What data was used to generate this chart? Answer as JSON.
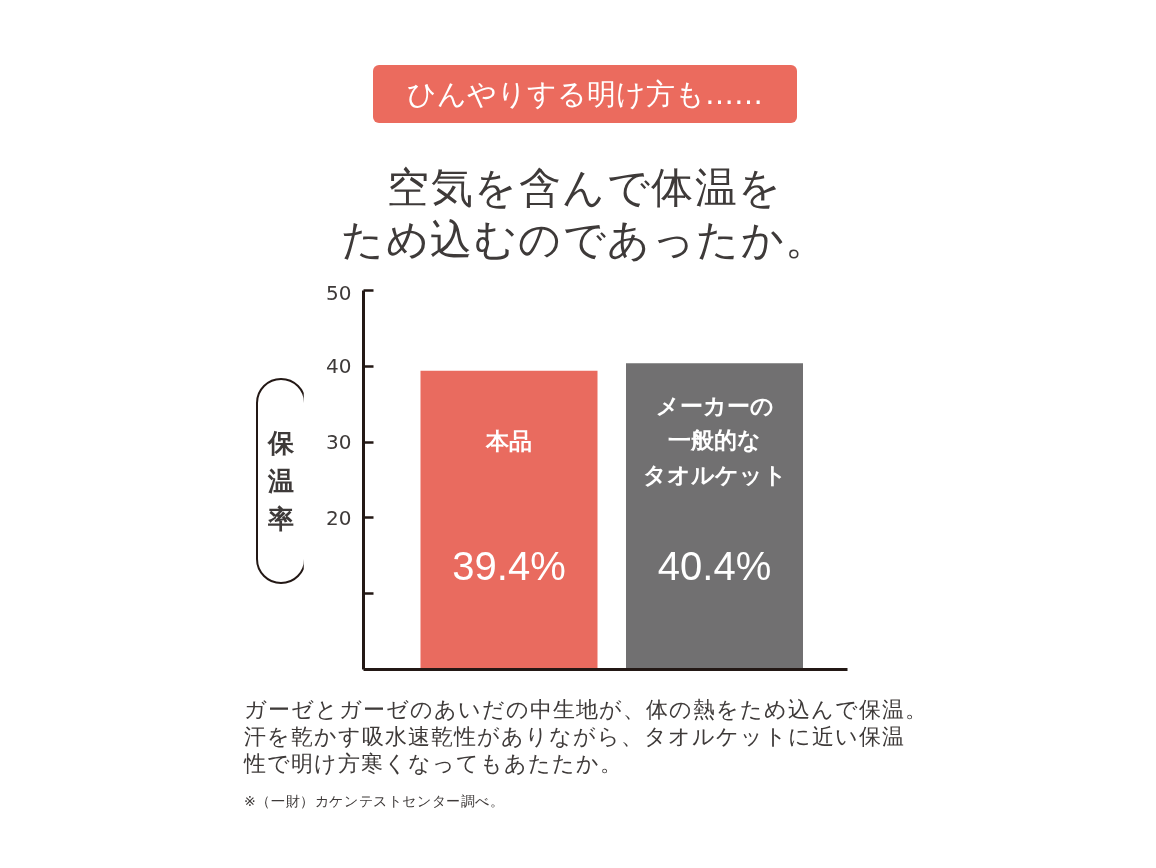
{
  "chart_data": {
    "type": "bar",
    "title": "ひんやりする明け方も……",
    "subtitle": "空気を含んで体温をため込むのであったか。",
    "ylabel": "保温率",
    "categories": [
      "本品",
      "メーカーの一般的なタオルケット"
    ],
    "values": [
      39.4,
      40.4
    ],
    "colors": [
      "#e96b5f",
      "#717071"
    ],
    "value_labels": [
      "39.4%",
      "40.4%"
    ],
    "ylim": [
      0,
      50
    ],
    "yticks": [
      {
        "value": 10,
        "label": null
      },
      20,
      30,
      40,
      50
    ],
    "tick_labels": "y",
    "annotations": [
      "ガーゼとガーゼのあいだの中生地が、体の熱をため込んで保温。汗を乾かす吸水速乾性がありながら、タオルケットに近い保温性で明け方寒くなってもあたたか。",
      "※（一財）カケンテストセンター調べ。"
    ]
  }
}
